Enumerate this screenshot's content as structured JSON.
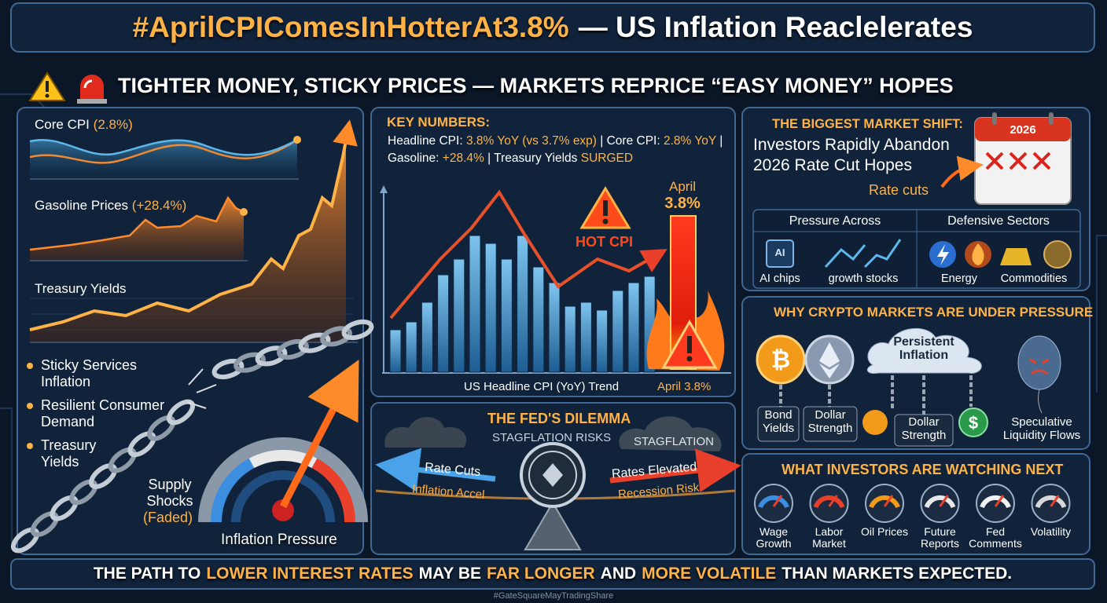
{
  "header": {
    "title_tag": "#AprilCPIComesInHotterAt3.8%",
    "title_rest": "— US Inflation Reaclelerates",
    "subtitle": "TIGHTER MONEY, STICKY PRICES — MARKETS REPRICE “EASY MONEY” HOPES"
  },
  "left_panel": {
    "charts": [
      {
        "label": "Core CPI",
        "value": "(2.8%)"
      },
      {
        "label": "Gasoline Prices",
        "value": "(+28.4%)"
      },
      {
        "label": "Treasury Yields"
      }
    ],
    "bullets": [
      "Sticky Services Inflation",
      "Resilient Consumer Demand",
      "Treasury Yields"
    ],
    "supply_shocks": "Supply Shocks",
    "faded": "(Faded)",
    "gauge_label": "Inflation Pressure"
  },
  "key_numbers": {
    "title": "KEY NUMBERS:",
    "segments": [
      {
        "text": "Headline CPI:",
        "color": "#ffffff"
      },
      {
        "text": "3.8% YoY (vs 3.7% exp)",
        "color": "#ffb347"
      },
      {
        "text": "| Core CPI:",
        "color": "#ffffff"
      },
      {
        "text": "2.8% YoY",
        "color": "#ffb347"
      },
      {
        "text": "| Gasoline:",
        "color": "#ffffff"
      },
      {
        "text": "+28.4%",
        "color": "#ffb347"
      },
      {
        "text": "| Treasury Yields",
        "color": "#ffffff"
      },
      {
        "text": "SURGED",
        "color": "#ffb347"
      }
    ]
  },
  "cpi_chart": {
    "hot_label": "HOT CPI",
    "month": "April",
    "value_label": "3.8%",
    "caption": "US Headline CPI (YoY) Trend",
    "caption_value": "April 3.8%"
  },
  "fed": {
    "title": "THE FED'S DILEMMA",
    "subtitle": "STAGFLATION RISKS",
    "cloud": "STAGFLATION",
    "left": "Rate Cuts",
    "left_sub": "Inflation Accel",
    "right": "Rates Elevated",
    "right_sub": "Recession Risk"
  },
  "market_shift": {
    "title": "THE BIGGEST MARKET SHIFT:",
    "headline": [
      "Investors Rapidly Abandon",
      "2026 Rate Cut Hopes"
    ],
    "arrow_label": "Rate cuts",
    "calendar_year": "2026",
    "pressure_header": "Pressure Across",
    "defensive_header": "Defensive Sectors",
    "chip_icon": "AI",
    "pressure_items": [
      "AI chips",
      "growth stocks"
    ],
    "defensive_items": [
      "Energy",
      "Commodities"
    ]
  },
  "crypto": {
    "title": "WHY CRYPTO MARKETS ARE UNDER PRESSURE",
    "cloud": "Persistent Inflation",
    "chains": [
      "Bond Yields",
      "Dollar Strength",
      "Dollar Strength",
      "Speculative Liquidity Flows"
    ]
  },
  "watching": {
    "title": "WHAT INVESTORS ARE WATCHING NEXT",
    "items": [
      "Wage Growth",
      "Labor Market",
      "Oil Prices",
      "Future Reports",
      "Fed Comments",
      "Volatility"
    ]
  },
  "footer": {
    "segments": [
      {
        "text": "THE PATH TO",
        "color": "#ffffff"
      },
      {
        "text": "LOWER INTEREST RATES",
        "color": "#ffb347"
      },
      {
        "text": "MAY BE",
        "color": "#ffffff"
      },
      {
        "text": "FAR LONGER",
        "color": "#ffb347"
      },
      {
        "text": "AND",
        "color": "#ffffff"
      },
      {
        "text": "MORE VOLATILE",
        "color": "#ffb347"
      },
      {
        "text": "THAN MARKETS EXPECTED.",
        "color": "#ffffff"
      }
    ],
    "hashtag": "#GateSquareMayTradingShare"
  }
}
